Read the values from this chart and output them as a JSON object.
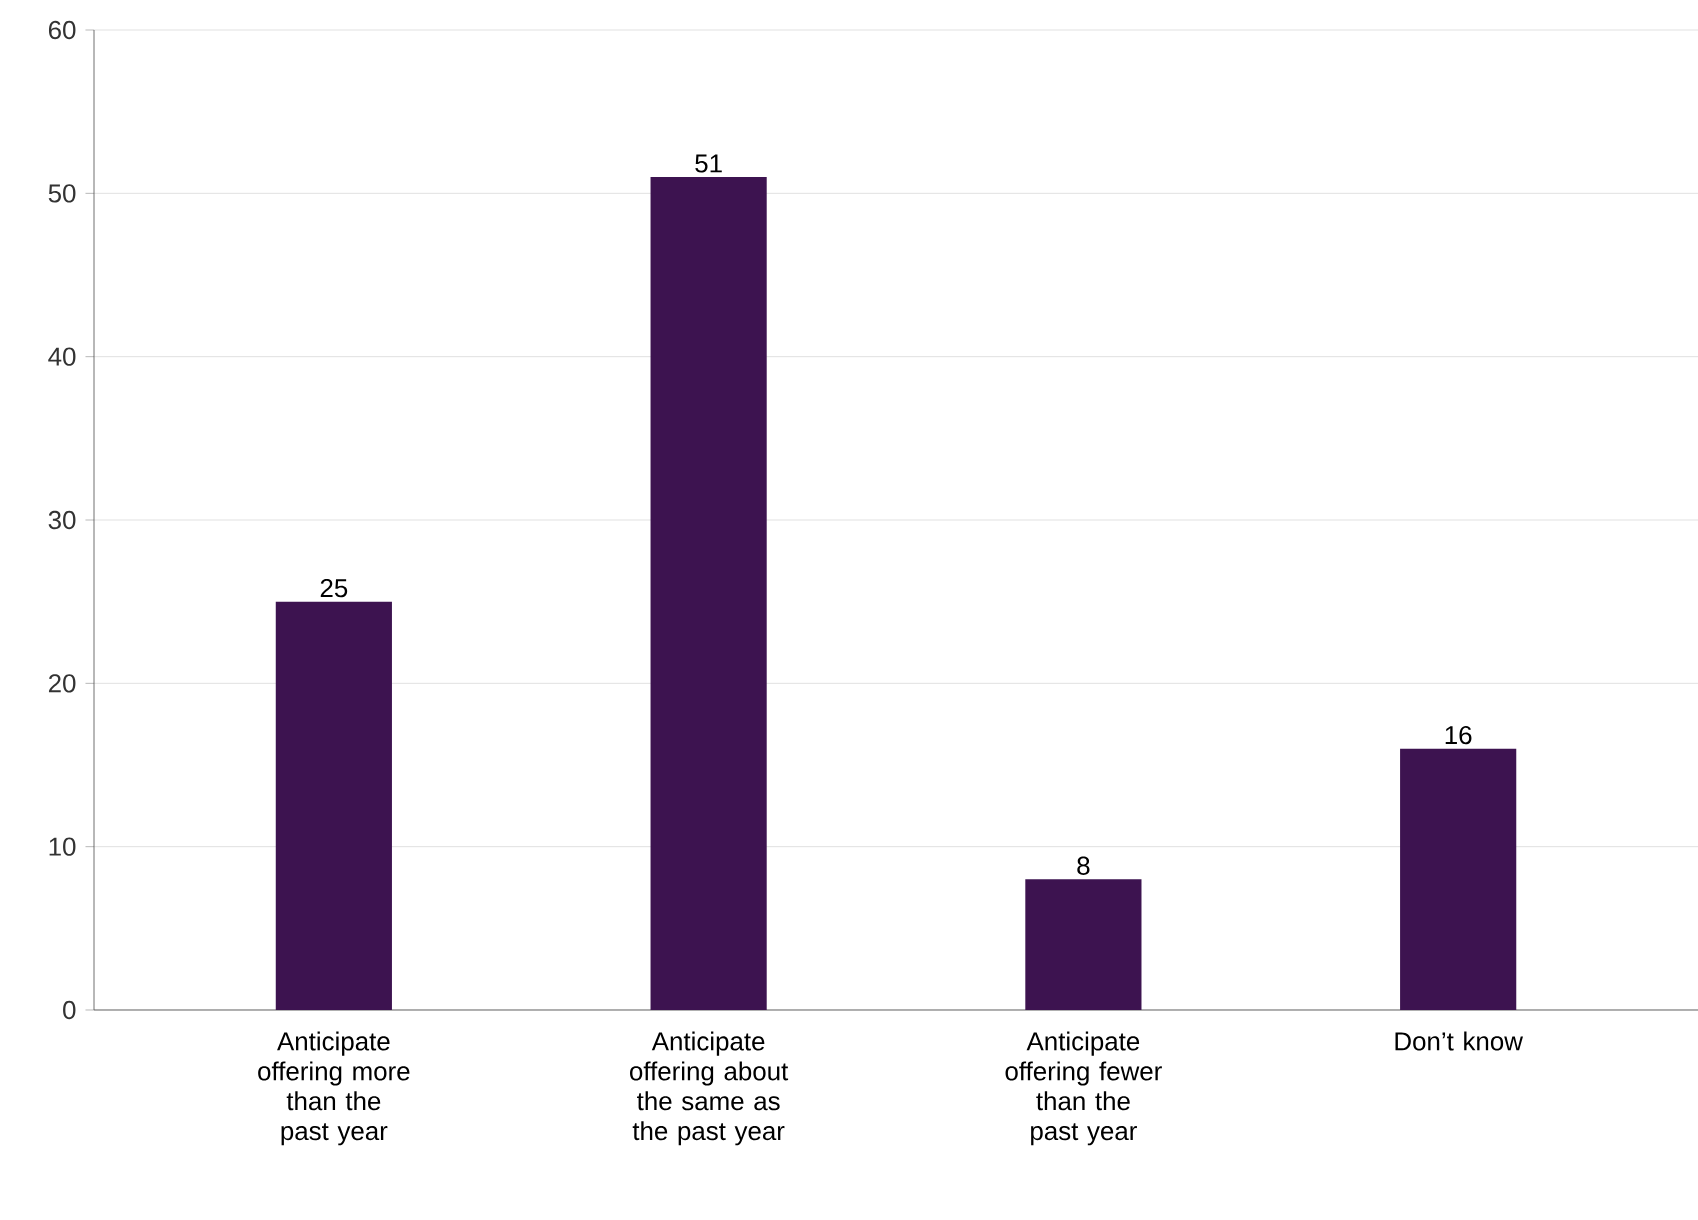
{
  "chart_data": {
    "type": "bar",
    "categories": [
      "Anticipate offering more than the past year",
      "Anticipate offering about the same as the past year",
      "Anticipate offering fewer than the past year",
      "Don’t know"
    ],
    "values": [
      25,
      51,
      8,
      16
    ],
    "color": "#3d1350",
    "ylim": [
      0,
      60
    ],
    "yticks": [
      0,
      10,
      20,
      30,
      40,
      50,
      60
    ],
    "grid": "y",
    "data_labels": true
  }
}
